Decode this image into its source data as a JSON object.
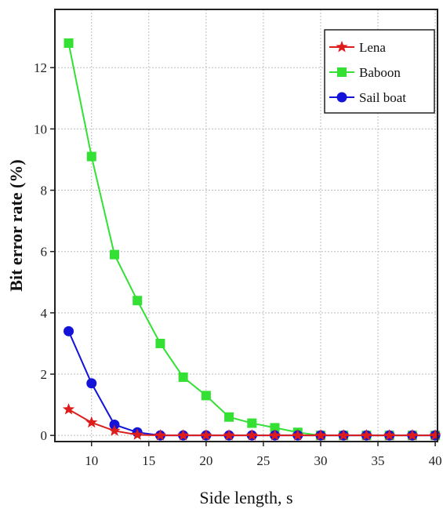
{
  "chart_data": {
    "type": "line",
    "xlabel": "Side length, s",
    "ylabel": "Bit error rate (%)",
    "xlim": [
      6.8,
      40.2
    ],
    "ylim": [
      -0.2,
      13.9
    ],
    "xticks": [
      10,
      15,
      20,
      25,
      30,
      35,
      40
    ],
    "yticks": [
      0,
      2,
      4,
      6,
      8,
      10,
      12
    ],
    "grid": true,
    "legend_position": "top-right",
    "series": [
      {
        "name": "Lena",
        "color": "#dd1c1c",
        "marker": "star",
        "x": [
          8,
          10,
          12,
          14,
          16,
          18,
          20,
          22,
          24,
          26,
          28,
          30,
          32,
          34,
          36,
          38,
          40
        ],
        "y": [
          0.85,
          0.42,
          0.15,
          0.02,
          0,
          0,
          0,
          0,
          0,
          0,
          0,
          0,
          0,
          0,
          0,
          0,
          0
        ]
      },
      {
        "name": "Baboon",
        "color": "#33e033",
        "marker": "square",
        "x": [
          8,
          10,
          12,
          14,
          16,
          18,
          20,
          22,
          24,
          26,
          28,
          30,
          32,
          34,
          36,
          38,
          40
        ],
        "y": [
          12.8,
          9.1,
          5.9,
          4.4,
          3.0,
          1.9,
          1.3,
          0.6,
          0.4,
          0.25,
          0.1,
          0,
          0,
          0,
          0,
          0,
          0
        ]
      },
      {
        "name": "Sail boat",
        "color": "#1414d8",
        "marker": "circle",
        "x": [
          8,
          10,
          12,
          14,
          16,
          18,
          20,
          22,
          24,
          26,
          28,
          30,
          32,
          34,
          36,
          38,
          40
        ],
        "y": [
          3.4,
          1.7,
          0.35,
          0.1,
          0,
          0,
          0,
          0,
          0,
          0,
          0,
          0,
          0,
          0,
          0,
          0,
          0
        ]
      }
    ]
  }
}
